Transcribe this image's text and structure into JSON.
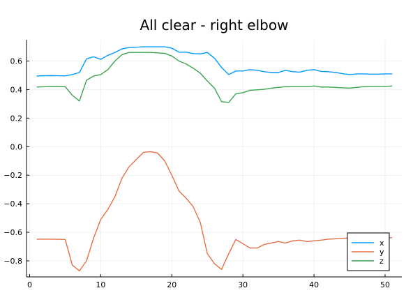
{
  "chart_data": {
    "type": "line",
    "title": "All clear - right elbow",
    "xlabel": "",
    "ylabel": "",
    "xlim": [
      1,
      51
    ],
    "ylim": [
      -0.9,
      0.75
    ],
    "xticks": [
      0,
      10,
      20,
      30,
      40,
      50
    ],
    "xtick_labels": [
      "0",
      "10",
      "20",
      "30",
      "40",
      "50"
    ],
    "yticks": [
      0.6,
      0.4,
      0.2,
      0.0,
      -0.2,
      -0.4,
      -0.6,
      -0.8
    ],
    "ytick_labels": [
      "0.6",
      "0.4",
      "0.2",
      "0.0",
      "−0.2",
      "−0.4",
      "−0.6",
      "−0.8"
    ],
    "grid": true,
    "legend_position": "bottom-right",
    "x": [
      1,
      2,
      3,
      4,
      5,
      6,
      7,
      8,
      9,
      10,
      11,
      12,
      13,
      14,
      15,
      16,
      17,
      18,
      19,
      20,
      21,
      22,
      23,
      24,
      25,
      26,
      27,
      28,
      29,
      30,
      31,
      32,
      33,
      34,
      35,
      36,
      37,
      38,
      39,
      40,
      41,
      42,
      43,
      44,
      45,
      46,
      47,
      48,
      49,
      50,
      51
    ],
    "series": [
      {
        "name": "x",
        "color": "#009AFA",
        "values": [
          0.495,
          0.497,
          0.498,
          0.497,
          0.496,
          0.505,
          0.52,
          0.615,
          0.63,
          0.612,
          0.64,
          0.66,
          0.685,
          0.695,
          0.697,
          0.7,
          0.7,
          0.7,
          0.7,
          0.69,
          0.662,
          0.662,
          0.652,
          0.65,
          0.66,
          0.62,
          0.555,
          0.505,
          0.53,
          0.53,
          0.54,
          0.535,
          0.525,
          0.52,
          0.52,
          0.535,
          0.525,
          0.522,
          0.535,
          0.54,
          0.527,
          0.525,
          0.52,
          0.512,
          0.505,
          0.51,
          0.51,
          0.508,
          0.508,
          0.51,
          0.51
        ]
      },
      {
        "name": "y",
        "color": "#E36F47",
        "values": [
          -0.648,
          -0.648,
          -0.648,
          -0.649,
          -0.65,
          -0.83,
          -0.87,
          -0.8,
          -0.64,
          -0.51,
          -0.44,
          -0.35,
          -0.22,
          -0.14,
          -0.09,
          -0.04,
          -0.035,
          -0.045,
          -0.1,
          -0.2,
          -0.31,
          -0.36,
          -0.42,
          -0.53,
          -0.75,
          -0.82,
          -0.86,
          -0.75,
          -0.65,
          -0.68,
          -0.71,
          -0.71,
          -0.685,
          -0.675,
          -0.665,
          -0.675,
          -0.66,
          -0.655,
          -0.665,
          -0.66,
          -0.655,
          -0.648,
          -0.645,
          -0.642,
          -0.64,
          -0.638,
          -0.638,
          -0.638,
          -0.638,
          -0.638,
          -0.638
        ]
      },
      {
        "name": "z",
        "color": "#3EA44E",
        "values": [
          0.418,
          0.42,
          0.422,
          0.421,
          0.42,
          0.36,
          0.32,
          0.465,
          0.495,
          0.505,
          0.54,
          0.6,
          0.645,
          0.66,
          0.66,
          0.66,
          0.66,
          0.657,
          0.654,
          0.635,
          0.6,
          0.58,
          0.55,
          0.515,
          0.46,
          0.41,
          0.315,
          0.31,
          0.37,
          0.378,
          0.395,
          0.398,
          0.402,
          0.41,
          0.415,
          0.42,
          0.42,
          0.42,
          0.42,
          0.425,
          0.418,
          0.418,
          0.415,
          0.412,
          0.41,
          0.415,
          0.42,
          0.422,
          0.422,
          0.422,
          0.425
        ]
      }
    ]
  }
}
